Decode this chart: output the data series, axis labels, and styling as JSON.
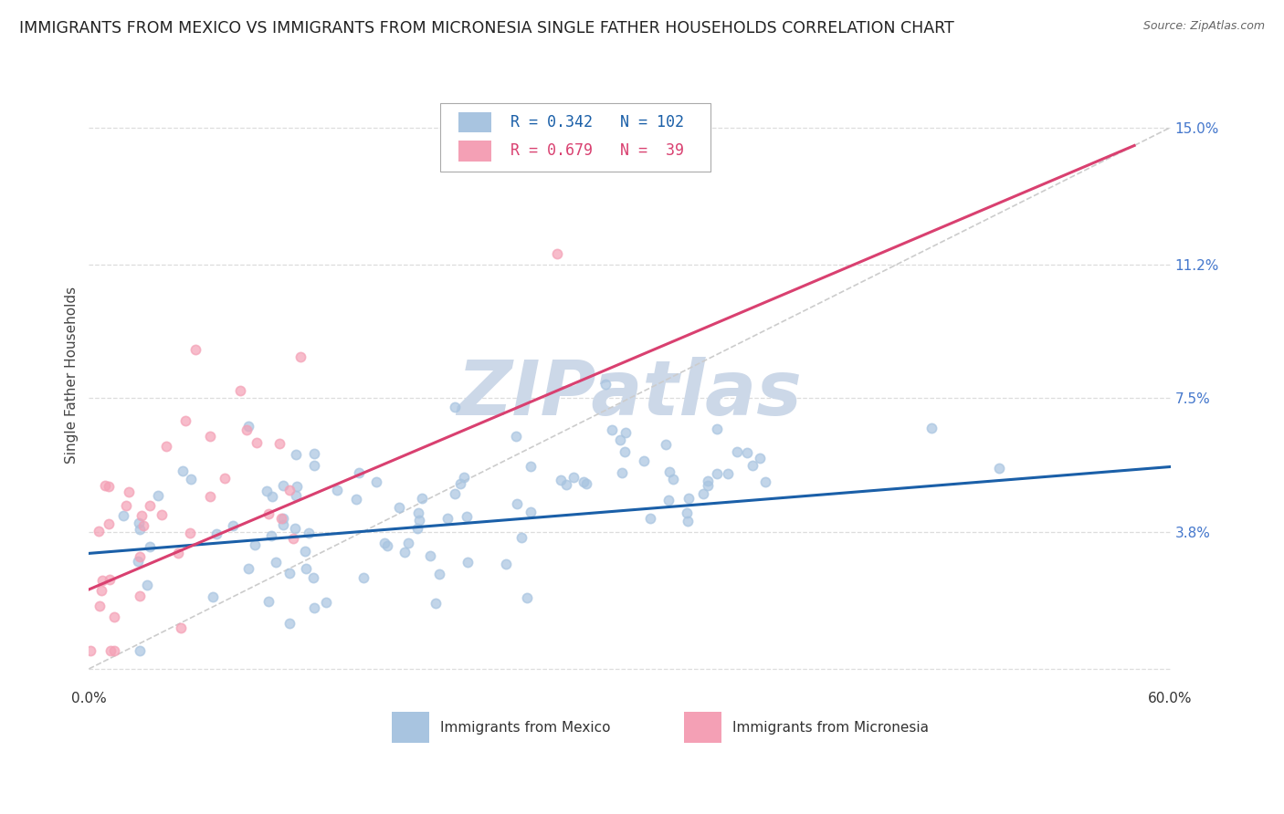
{
  "title": "IMMIGRANTS FROM MEXICO VS IMMIGRANTS FROM MICRONESIA SINGLE FATHER HOUSEHOLDS CORRELATION CHART",
  "source": "Source: ZipAtlas.com",
  "ylabel": "Single Father Households",
  "watermark": "ZIPatlas",
  "xlim": [
    0.0,
    0.6
  ],
  "ylim": [
    -0.005,
    0.168
  ],
  "xticks": [
    0.0,
    0.1,
    0.2,
    0.3,
    0.4,
    0.5,
    0.6
  ],
  "xtick_labels": [
    "0.0%",
    "",
    "",
    "",
    "",
    "",
    "60.0%"
  ],
  "yticks": [
    0.0,
    0.038,
    0.075,
    0.112,
    0.15
  ],
  "ytick_labels": [
    "",
    "3.8%",
    "7.5%",
    "11.2%",
    "15.0%"
  ],
  "mexico_color": "#a8c4e0",
  "micronesia_color": "#f4a0b5",
  "mexico_R": 0.342,
  "mexico_N": 102,
  "micronesia_R": 0.679,
  "micronesia_N": 39,
  "line_mexico_color": "#1a5fa8",
  "line_micronesia_color": "#d94070",
  "diagonal_color": "#cccccc",
  "grid_color": "#dddddd",
  "background_color": "#ffffff",
  "title_fontsize": 12.5,
  "axis_label_fontsize": 11,
  "tick_fontsize": 11,
  "tick_color": "#4477cc",
  "legend_fontsize": 12,
  "legend_label_color": "#333333",
  "watermark_color": "#ccd8e8",
  "watermark_fontsize": 60,
  "mexico_line_x0": 0.0,
  "mexico_line_x1": 0.6,
  "mexico_line_y0": 0.032,
  "mexico_line_y1": 0.056,
  "micronesia_line_x0": 0.0,
  "micronesia_line_x1": 0.58,
  "micronesia_line_y0": 0.022,
  "micronesia_line_y1": 0.145
}
